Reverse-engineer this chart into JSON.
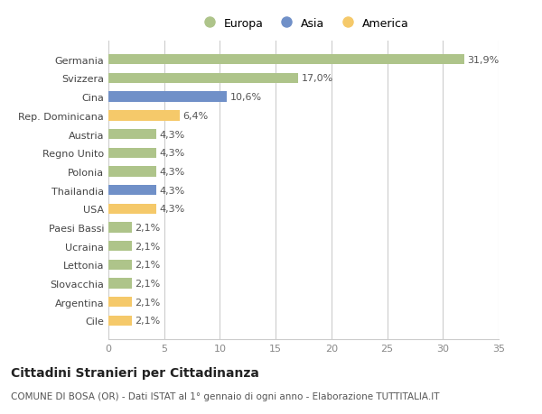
{
  "categories": [
    "Germania",
    "Svizzera",
    "Cina",
    "Rep. Dominicana",
    "Austria",
    "Regno Unito",
    "Polonia",
    "Thailandia",
    "USA",
    "Paesi Bassi",
    "Ucraina",
    "Lettonia",
    "Slovacchia",
    "Argentina",
    "Cile"
  ],
  "values": [
    31.9,
    17.0,
    10.6,
    6.4,
    4.3,
    4.3,
    4.3,
    4.3,
    4.3,
    2.1,
    2.1,
    2.1,
    2.1,
    2.1,
    2.1
  ],
  "labels": [
    "31,9%",
    "17,0%",
    "10,6%",
    "6,4%",
    "4,3%",
    "4,3%",
    "4,3%",
    "4,3%",
    "4,3%",
    "2,1%",
    "2,1%",
    "2,1%",
    "2,1%",
    "2,1%",
    "2,1%"
  ],
  "colors": [
    "#aec48a",
    "#aec48a",
    "#7090c8",
    "#f5c96a",
    "#aec48a",
    "#aec48a",
    "#aec48a",
    "#7090c8",
    "#f5c96a",
    "#aec48a",
    "#aec48a",
    "#aec48a",
    "#aec48a",
    "#f5c96a",
    "#f5c96a"
  ],
  "continent_colors": {
    "Europa": "#aec48a",
    "Asia": "#7090c8",
    "America": "#f5c96a"
  },
  "xlim": [
    0,
    35
  ],
  "xticks": [
    0,
    5,
    10,
    15,
    20,
    25,
    30,
    35
  ],
  "background_color": "#ffffff",
  "grid_color": "#cccccc",
  "title": "Cittadini Stranieri per Cittadinanza",
  "subtitle": "COMUNE DI BOSA (OR) - Dati ISTAT al 1° gennaio di ogni anno - Elaborazione TUTTITALIA.IT",
  "bar_height": 0.55,
  "label_fontsize": 8,
  "tick_fontsize": 8,
  "title_fontsize": 10,
  "subtitle_fontsize": 7.5
}
